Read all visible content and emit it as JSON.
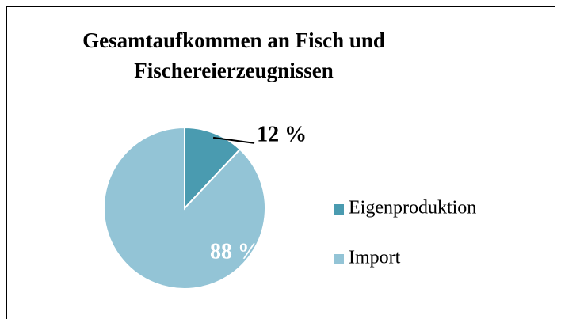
{
  "chart_data": {
    "type": "pie",
    "title": "Gesamtaufkommen an Fisch und Fischereierzeugnissen",
    "categories": [
      "Eigenproduktion",
      "Import"
    ],
    "values": [
      12,
      88
    ],
    "value_labels": [
      "12 %",
      "88 %"
    ],
    "colors": [
      "#4a9bb0",
      "#93c4d6"
    ],
    "legend": "right"
  }
}
